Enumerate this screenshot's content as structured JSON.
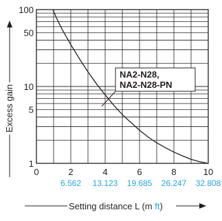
{
  "chart_data": {
    "type": "line",
    "title": "",
    "xlabel": "Setting distance L (m ",
    "xlabel_unit_alt": "ft",
    "xlabel_close": ")",
    "ylabel": "Excess gain",
    "xlim": [
      0,
      10
    ],
    "ylim": [
      1,
      100
    ],
    "yscale": "log",
    "grid": true,
    "x_ticks": [
      "0",
      "2",
      "4",
      "6",
      "8",
      "10"
    ],
    "x_ticks_ft": [
      "6.562",
      "13.123",
      "19.685",
      "26.247",
      "32.808"
    ],
    "y_ticks": [
      "1",
      "5",
      "10",
      "50",
      "100"
    ],
    "series": [
      {
        "name": "NA2-N28, NA2-N28-PN",
        "x": [
          0.95,
          1.2,
          1.5,
          2.0,
          2.5,
          3.0,
          3.5,
          4.0,
          4.5,
          5.0,
          5.5,
          6.0,
          6.5,
          7.0,
          7.5,
          8.0,
          8.5,
          9.0,
          9.5,
          10.0
        ],
        "y": [
          100,
          75,
          55,
          35,
          23,
          15.5,
          10.8,
          7.8,
          5.7,
          4.3,
          3.4,
          2.7,
          2.2,
          1.85,
          1.6,
          1.4,
          1.25,
          1.13,
          1.05,
          1.0
        ]
      }
    ],
    "annotations": [
      "NA2-N28,",
      "NA2-N28-PN"
    ],
    "colors": {
      "line": "#231f20",
      "grid": "#231f20",
      "ft_ticks": "#2aa3d6"
    }
  }
}
